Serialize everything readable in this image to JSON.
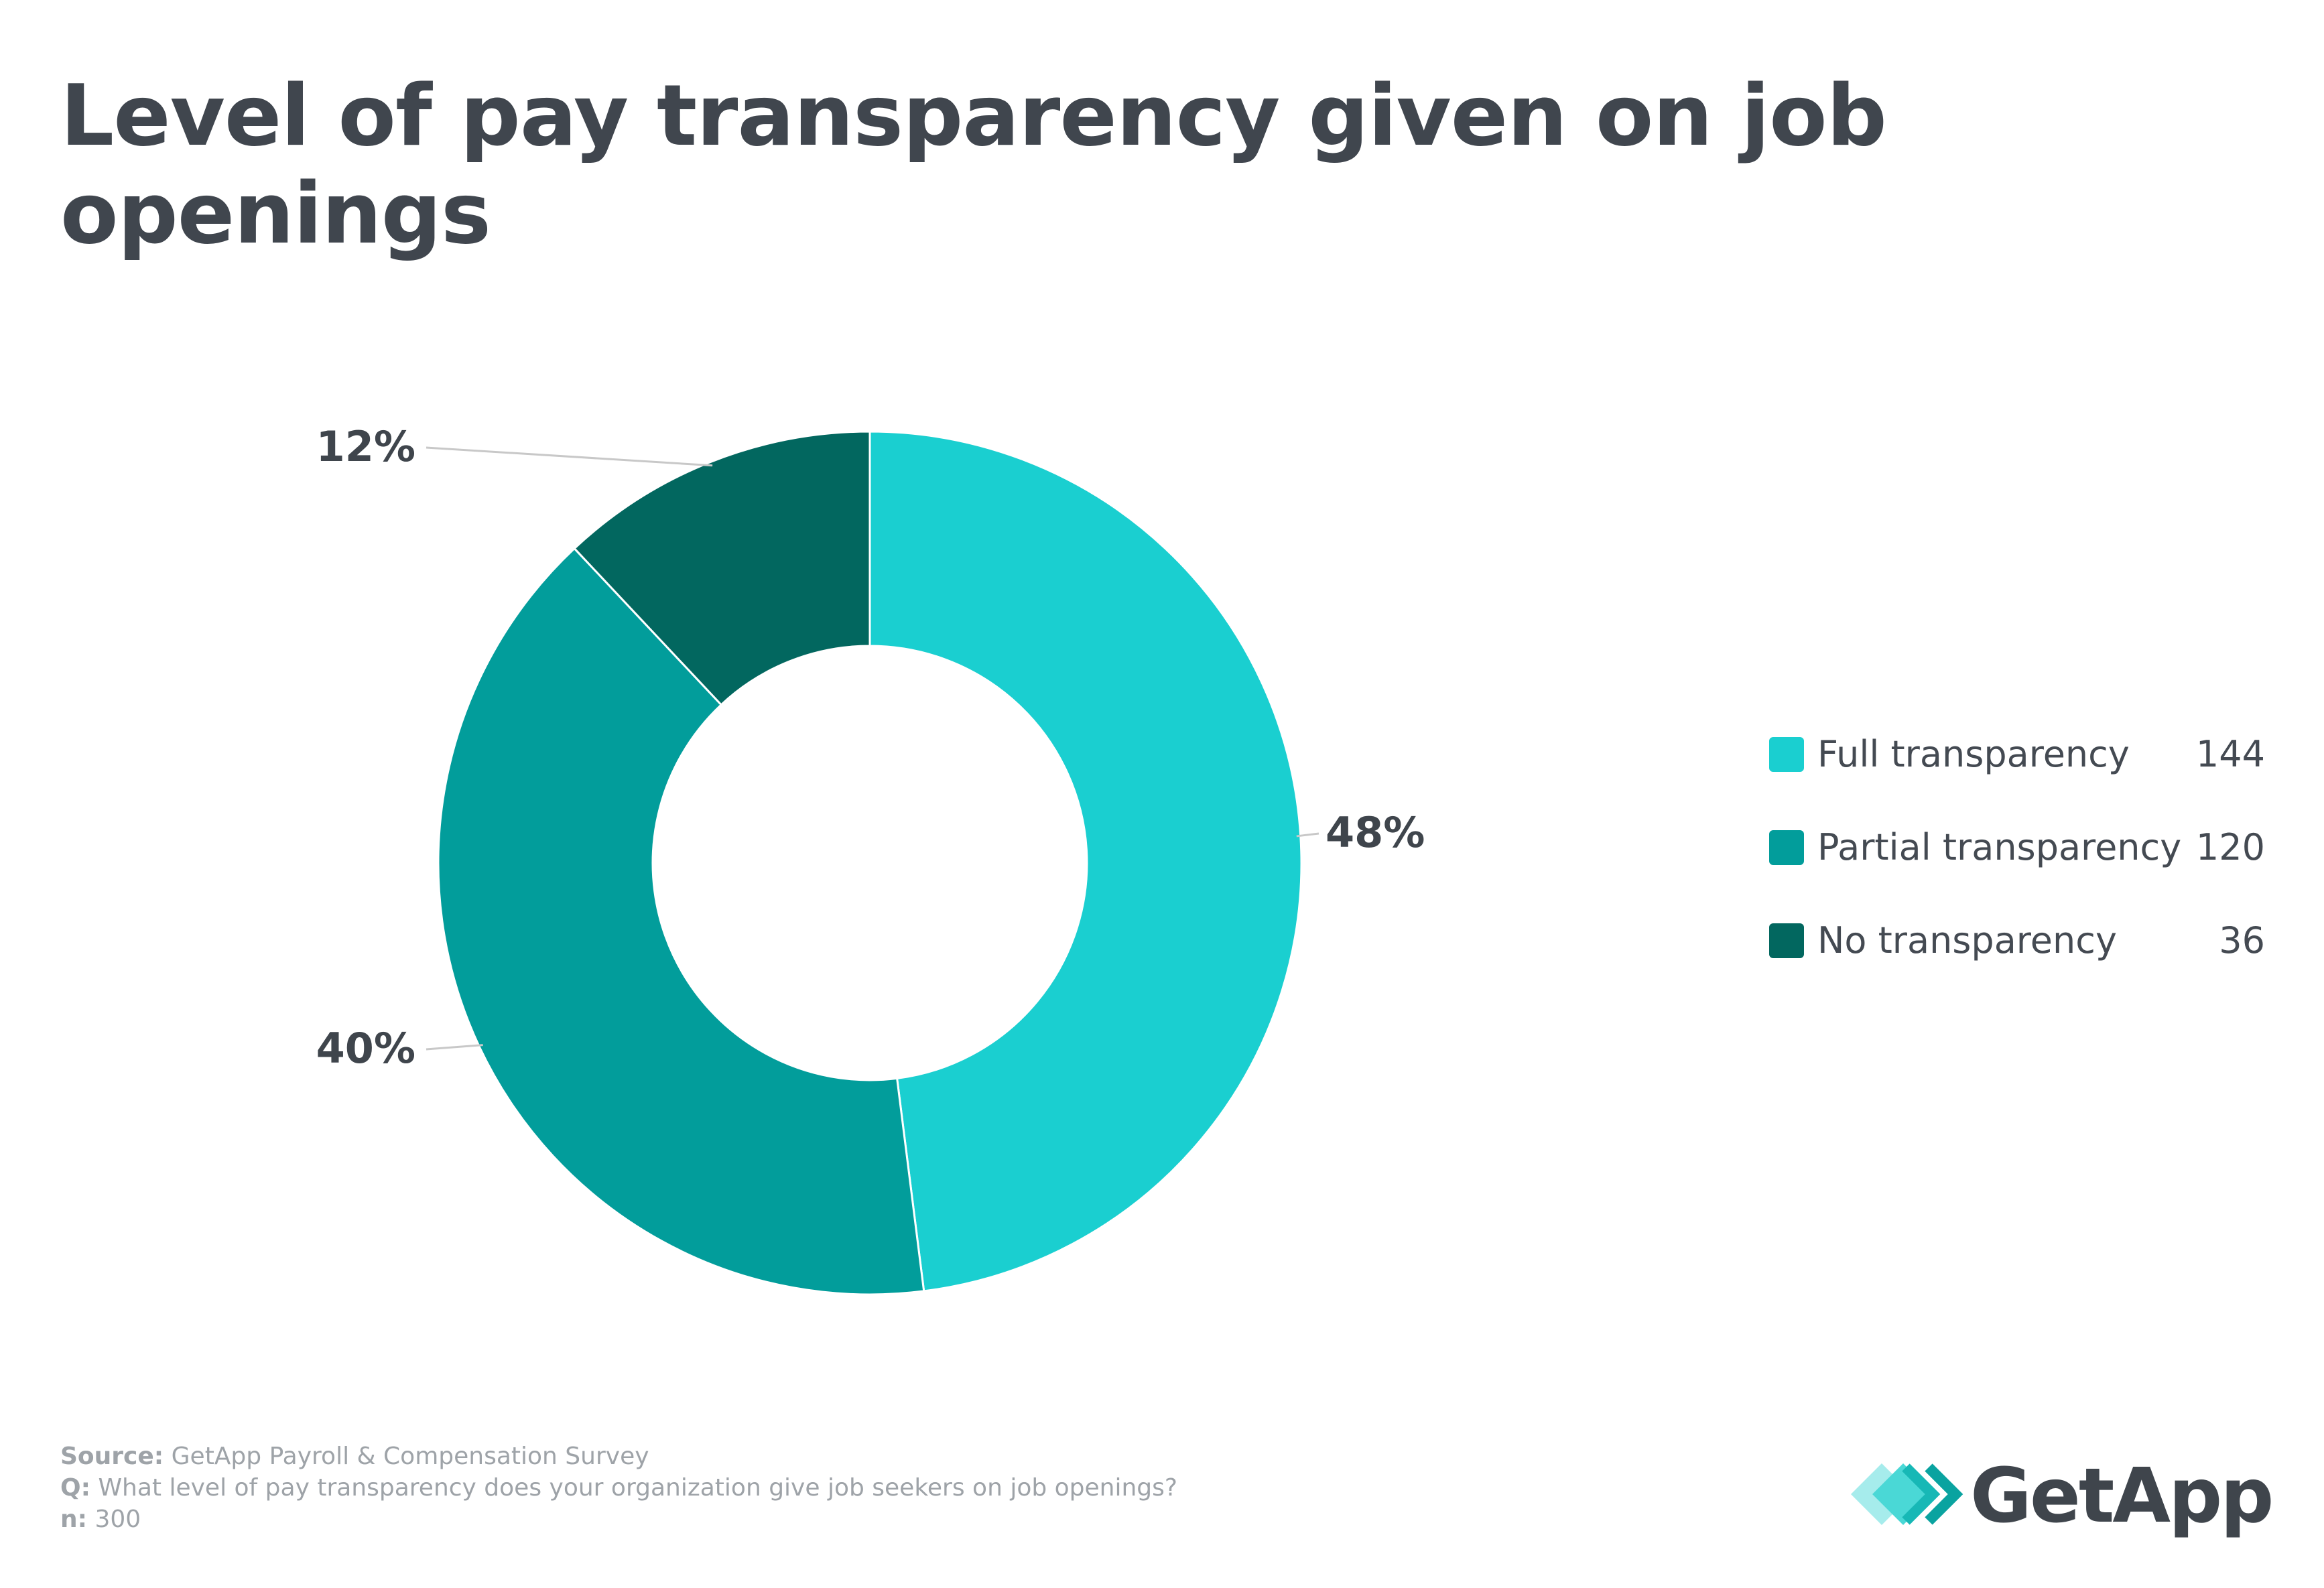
{
  "chart_data": {
    "type": "pie",
    "title": "Level of pay transparency given on job openings",
    "donut": true,
    "categories": [
      "Full transparency",
      "Partial transparency",
      "No transparency"
    ],
    "values": [
      144,
      120,
      36
    ],
    "percent_labels": [
      "48%",
      "40%",
      "12%"
    ],
    "colors": [
      "#1acfd0",
      "#029d9b",
      "#02675f"
    ],
    "legend_position": "right"
  },
  "legend": {
    "items": [
      {
        "label": "Full transparency",
        "value": "144",
        "color": "#1acfd0"
      },
      {
        "label": "Partial transparency",
        "value": "120",
        "color": "#029d9b"
      },
      {
        "label": "No transparency",
        "value": "36",
        "color": "#02675f"
      }
    ]
  },
  "footer": {
    "source_key": "Source:",
    "source_text": " GetApp Payroll & Compensation Survey",
    "question_key": "Q:",
    "question_text": " What level of pay transparency does your organization give job seekers on job openings?",
    "n_key": "n:",
    "n_text": " 300"
  },
  "logo": {
    "text": "GetApp",
    "icon": "getapp-diamond-icon"
  }
}
